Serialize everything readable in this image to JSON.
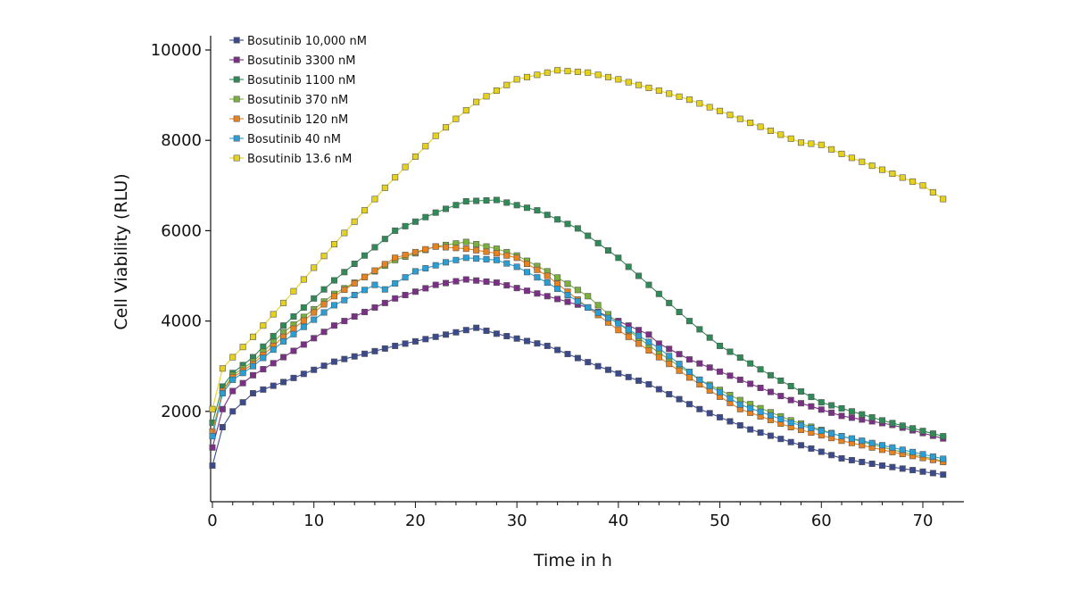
{
  "chart_data": {
    "type": "line",
    "xlabel": "Time in h",
    "ylabel": "Cell Viability (RLU)",
    "xlim": [
      0,
      74
    ],
    "ylim": [
      0,
      10300
    ],
    "x_ticks": [
      0,
      10,
      20,
      30,
      40,
      50,
      60,
      70
    ],
    "y_ticks": [
      2000,
      4000,
      6000,
      8000,
      10000
    ],
    "x_tick_labels": [
      "0",
      "10",
      "20",
      "30",
      "40",
      "50",
      "60",
      "70"
    ],
    "y_tick_labels": [
      "2000",
      "4000",
      "6000",
      "8000",
      "10000"
    ],
    "legend_position": "top-left",
    "grid": false,
    "marker": "square",
    "series": [
      {
        "name": "Bosutinib 10,000 nM",
        "color": "#3a4a8c",
        "anchors": [
          [
            0,
            800
          ],
          [
            1,
            1650
          ],
          [
            2,
            2000
          ],
          [
            4,
            2400
          ],
          [
            7,
            2650
          ],
          [
            12,
            3100
          ],
          [
            18,
            3450
          ],
          [
            23,
            3700
          ],
          [
            26,
            3850
          ],
          [
            28,
            3720
          ],
          [
            33,
            3450
          ],
          [
            38,
            3000
          ],
          [
            43,
            2600
          ],
          [
            48,
            2050
          ],
          [
            53,
            1600
          ],
          [
            58,
            1250
          ],
          [
            62,
            960
          ],
          [
            66,
            800
          ],
          [
            72,
            600
          ]
        ]
      },
      {
        "name": "Bosutinib 3300 nM",
        "color": "#7b2f86",
        "anchors": [
          [
            0,
            1200
          ],
          [
            1,
            2050
          ],
          [
            2,
            2450
          ],
          [
            4,
            2800
          ],
          [
            7,
            3200
          ],
          [
            12,
            3900
          ],
          [
            18,
            4500
          ],
          [
            22,
            4800
          ],
          [
            25,
            4920
          ],
          [
            28,
            4850
          ],
          [
            33,
            4550
          ],
          [
            37,
            4300
          ],
          [
            40,
            4000
          ],
          [
            43,
            3700
          ],
          [
            44,
            3500
          ],
          [
            47,
            3150
          ],
          [
            52,
            2700
          ],
          [
            57,
            2250
          ],
          [
            62,
            1900
          ],
          [
            67,
            1700
          ],
          [
            72,
            1400
          ]
        ]
      },
      {
        "name": "Bosutinib 1100 nM",
        "color": "#2e8b57",
        "anchors": [
          [
            0,
            1750
          ],
          [
            1,
            2550
          ],
          [
            2,
            2850
          ],
          [
            4,
            3200
          ],
          [
            7,
            3900
          ],
          [
            12,
            4900
          ],
          [
            18,
            6000
          ],
          [
            22,
            6400
          ],
          [
            25,
            6650
          ],
          [
            28,
            6680
          ],
          [
            32,
            6450
          ],
          [
            36,
            6050
          ],
          [
            40,
            5400
          ],
          [
            44,
            4600
          ],
          [
            47,
            4000
          ],
          [
            50,
            3450
          ],
          [
            55,
            2800
          ],
          [
            60,
            2200
          ],
          [
            66,
            1800
          ],
          [
            72,
            1450
          ]
        ]
      },
      {
        "name": "Bosutinib 370 nM",
        "color": "#7ab03c",
        "anchors": [
          [
            0,
            1500
          ],
          [
            1,
            2450
          ],
          [
            2,
            2800
          ],
          [
            4,
            3100
          ],
          [
            7,
            3750
          ],
          [
            12,
            4600
          ],
          [
            18,
            5350
          ],
          [
            22,
            5650
          ],
          [
            25,
            5750
          ],
          [
            28,
            5600
          ],
          [
            30,
            5450
          ],
          [
            33,
            5100
          ],
          [
            37,
            4550
          ],
          [
            40,
            3950
          ],
          [
            44,
            3300
          ],
          [
            48,
            2700
          ],
          [
            52,
            2250
          ],
          [
            57,
            1800
          ],
          [
            62,
            1450
          ],
          [
            67,
            1150
          ],
          [
            72,
            900
          ]
        ]
      },
      {
        "name": "Bosutinib 120 nM",
        "color": "#e8821e",
        "anchors": [
          [
            0,
            1550
          ],
          [
            1,
            2450
          ],
          [
            2,
            2750
          ],
          [
            4,
            3050
          ],
          [
            7,
            3650
          ],
          [
            12,
            4550
          ],
          [
            18,
            5400
          ],
          [
            22,
            5650
          ],
          [
            25,
            5600
          ],
          [
            28,
            5500
          ],
          [
            30,
            5400
          ],
          [
            33,
            5000
          ],
          [
            37,
            4300
          ],
          [
            40,
            3800
          ],
          [
            44,
            3200
          ],
          [
            48,
            2600
          ],
          [
            52,
            2050
          ],
          [
            57,
            1650
          ],
          [
            62,
            1350
          ],
          [
            67,
            1100
          ],
          [
            72,
            880
          ]
        ]
      },
      {
        "name": "Bosutinib 40 nM",
        "color": "#2a9fd6",
        "anchors": [
          [
            0,
            1450
          ],
          [
            1,
            2400
          ],
          [
            2,
            2700
          ],
          [
            4,
            3000
          ],
          [
            7,
            3550
          ],
          [
            12,
            4350
          ],
          [
            16,
            4800
          ],
          [
            17,
            4700
          ],
          [
            20,
            5100
          ],
          [
            23,
            5300
          ],
          [
            25,
            5400
          ],
          [
            28,
            5350
          ],
          [
            30,
            5200
          ],
          [
            33,
            4850
          ],
          [
            37,
            4300
          ],
          [
            40,
            3950
          ],
          [
            44,
            3400
          ],
          [
            48,
            2700
          ],
          [
            52,
            2150
          ],
          [
            57,
            1750
          ],
          [
            62,
            1450
          ],
          [
            67,
            1200
          ],
          [
            72,
            950
          ]
        ]
      },
      {
        "name": "Bosutinib 13.6 nM",
        "color": "#e6d21c",
        "anchors": [
          [
            0,
            2050
          ],
          [
            1,
            2950
          ],
          [
            2,
            3200
          ],
          [
            4,
            3650
          ],
          [
            7,
            4400
          ],
          [
            12,
            5700
          ],
          [
            17,
            6950
          ],
          [
            22,
            8100
          ],
          [
            26,
            8850
          ],
          [
            30,
            9350
          ],
          [
            34,
            9550
          ],
          [
            37,
            9500
          ],
          [
            40,
            9350
          ],
          [
            44,
            9100
          ],
          [
            47,
            8900
          ],
          [
            50,
            8650
          ],
          [
            54,
            8300
          ],
          [
            58,
            7950
          ],
          [
            60,
            7900
          ],
          [
            62,
            7700
          ],
          [
            66,
            7350
          ],
          [
            70,
            7000
          ],
          [
            72,
            6700
          ]
        ]
      }
    ]
  }
}
